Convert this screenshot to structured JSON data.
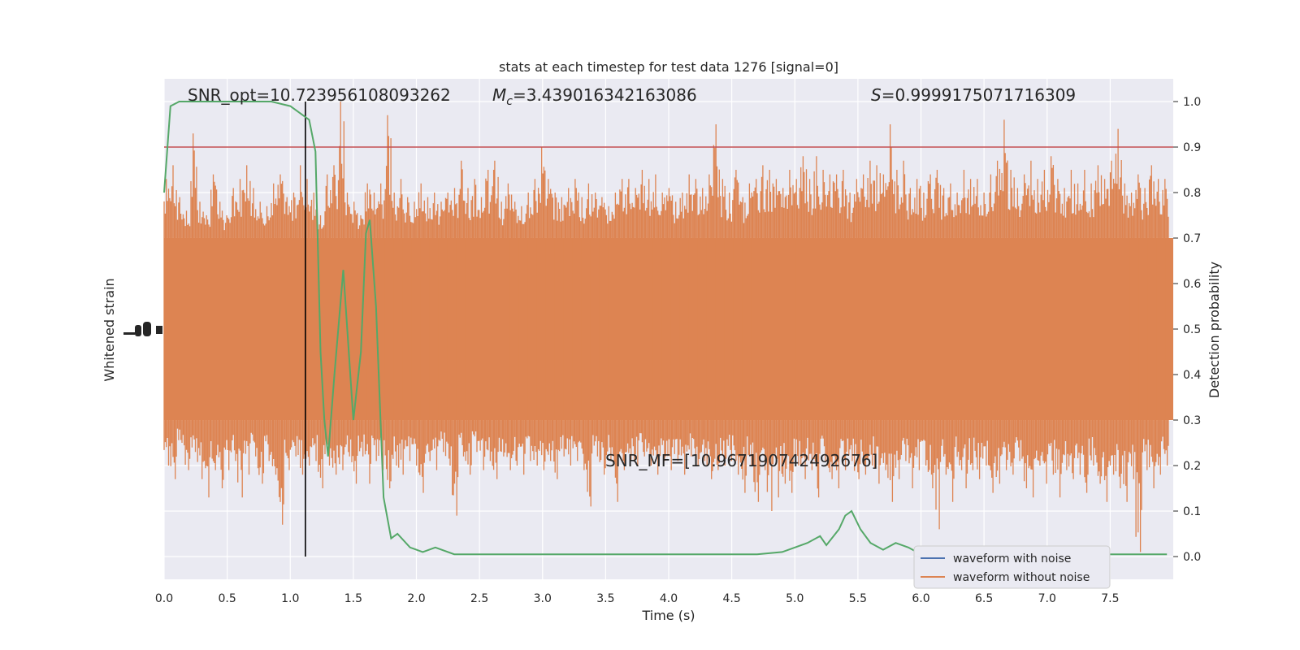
{
  "chart_data": {
    "type": "line",
    "title": "stats at each timestep for test data 1276 [signal=0]",
    "xlabel": "Time (s)",
    "ylabel_left": "Whitened strain",
    "ylabel_right": "Detection probability",
    "xlim": [
      0.0,
      8.0
    ],
    "ylim_right": [
      -0.05,
      1.05
    ],
    "x_ticks": [
      "0.0",
      "0.5",
      "1.0",
      "1.5",
      "2.0",
      "2.5",
      "3.0",
      "3.5",
      "4.0",
      "4.5",
      "5.0",
      "5.5",
      "6.0",
      "6.5",
      "7.0",
      "7.5"
    ],
    "y_ticks_right": [
      "0.0",
      "0.1",
      "0.2",
      "0.3",
      "0.4",
      "0.5",
      "0.6",
      "0.7",
      "0.8",
      "0.9",
      "1.0"
    ],
    "grid": true,
    "annotations": {
      "snr_opt": "SNR_opt=10.723956108093262",
      "mc_symbol": "M",
      "mc_subscript": "c",
      "mc_value": "=3.439016342163086",
      "s_symbol": "S",
      "s_value": "=0.9999175071716309",
      "snr_mf": "SNR_MF=[10.967190742492676]"
    },
    "threshold": 0.9,
    "marker_time": 1.12,
    "legend": {
      "position": "lower right",
      "entries": [
        "waveform with noise",
        "waveform without noise"
      ]
    },
    "series": [
      {
        "name": "waveform without noise",
        "color": "#dd8452",
        "band_low": 0.3,
        "band_high": 0.7,
        "upper_envelope": [
          0.83,
          0.86,
          0.79,
          0.76,
          0.93,
          0.78,
          0.75,
          0.84,
          0.78,
          0.75,
          0.81,
          0.83,
          0.86,
          0.81,
          0.78,
          0.77,
          0.82,
          0.84,
          0.79,
          0.8,
          0.86,
          0.83,
          0.8,
          0.75,
          0.84,
          0.86,
          1.0,
          0.8,
          0.78,
          0.75,
          0.82,
          0.8,
          0.82,
          0.97,
          0.8,
          0.83,
          0.79,
          0.78,
          0.82,
          0.79,
          0.8,
          0.78,
          0.8,
          0.81,
          0.87,
          0.81,
          0.83,
          0.79,
          0.85,
          0.87,
          0.78,
          0.82,
          0.78,
          0.77,
          0.8,
          0.83,
          0.9,
          0.83,
          0.8,
          0.79,
          0.81,
          0.83,
          0.79,
          0.82,
          0.8,
          0.79,
          0.77,
          0.8,
          0.83,
          0.83,
          0.81,
          0.85,
          0.83,
          0.84,
          0.8,
          0.81,
          0.78,
          0.8,
          0.84,
          0.83,
          0.81,
          0.84,
          0.95,
          0.83,
          0.8,
          0.85,
          0.79,
          0.82,
          0.83,
          0.86,
          0.85,
          0.83,
          0.81,
          0.85,
          0.83,
          0.88,
          0.83,
          0.88,
          0.85,
          0.84,
          0.84,
          0.85,
          0.8,
          0.83,
          0.84,
          0.87,
          0.86,
          0.84,
          0.95,
          0.85,
          0.87,
          0.81,
          0.83,
          0.8,
          0.84,
          0.85,
          0.81,
          0.82,
          0.8,
          0.85,
          0.83,
          0.83,
          0.8,
          0.84,
          0.87,
          0.96,
          0.85,
          0.81,
          0.84,
          0.87,
          0.83,
          0.85,
          0.88,
          0.83,
          0.81,
          0.85,
          0.82,
          0.85,
          0.82,
          0.86,
          0.83,
          0.87,
          0.94,
          0.82,
          0.8,
          0.84,
          0.81,
          0.86,
          0.83,
          0.83
        ],
        "lower_envelope": [
          0.2,
          0.17,
          0.25,
          0.19,
          0.23,
          0.17,
          0.13,
          0.19,
          0.15,
          0.19,
          0.21,
          0.13,
          0.18,
          0.22,
          0.16,
          0.21,
          0.18,
          0.07,
          0.19,
          0.22,
          0.18,
          0.2,
          0.21,
          0.15,
          0.2,
          0.18,
          0.19,
          0.22,
          0.16,
          0.22,
          0.16,
          0.21,
          0.19,
          0.15,
          0.2,
          0.18,
          0.21,
          0.2,
          0.14,
          0.21,
          0.19,
          0.23,
          0.2,
          0.09,
          0.22,
          0.18,
          0.23,
          0.19,
          0.21,
          0.17,
          0.22,
          0.19,
          0.2,
          0.18,
          0.21,
          0.2,
          0.19,
          0.21,
          0.17,
          0.22,
          0.2,
          0.21,
          0.19,
          0.11,
          0.22,
          0.18,
          0.21,
          0.12,
          0.19,
          0.21,
          0.2,
          0.22,
          0.2,
          0.18,
          0.21,
          0.19,
          0.21,
          0.18,
          0.22,
          0.2,
          0.21,
          0.17,
          0.19,
          0.2,
          0.21,
          0.18,
          0.14,
          0.2,
          0.12,
          0.19,
          0.1,
          0.13,
          0.16,
          0.14,
          0.2,
          0.17,
          0.19,
          0.13,
          0.21,
          0.17,
          0.15,
          0.19,
          0.21,
          0.17,
          0.18,
          0.2,
          0.16,
          0.19,
          0.12,
          0.17,
          0.21,
          0.15,
          0.19,
          0.2,
          0.15,
          0.06,
          0.18,
          0.12,
          0.2,
          0.15,
          0.19,
          0.17,
          0.2,
          0.14,
          0.16,
          0.19,
          0.18,
          0.21,
          0.15,
          0.13,
          0.2,
          0.16,
          0.18,
          0.13,
          0.19,
          0.17,
          0.18,
          0.14,
          0.2,
          0.16,
          0.12,
          0.18,
          0.15,
          0.12,
          0.17,
          0.01,
          0.19,
          0.15,
          0.18,
          0.2
        ]
      },
      {
        "name": "detection probability",
        "color": "#55a868",
        "x": [
          0.0,
          0.05,
          0.12,
          0.3,
          0.55,
          0.85,
          1.0,
          1.1,
          1.15,
          1.2,
          1.24,
          1.27,
          1.3,
          1.35,
          1.42,
          1.5,
          1.56,
          1.6,
          1.63,
          1.68,
          1.74,
          1.8,
          1.85,
          1.95,
          2.05,
          2.15,
          2.3,
          2.45,
          2.6,
          2.8,
          3.0,
          3.2,
          3.4,
          3.55,
          3.7,
          3.9,
          4.1,
          4.3,
          4.5,
          4.7,
          4.9,
          5.0,
          5.1,
          5.2,
          5.25,
          5.35,
          5.4,
          5.45,
          5.52,
          5.6,
          5.7,
          5.8,
          5.9,
          6.0,
          6.2,
          6.4,
          6.6,
          6.8,
          7.0,
          7.2,
          7.4,
          7.6,
          7.8,
          7.95
        ],
        "y": [
          0.8,
          0.99,
          1.0,
          1.0,
          1.0,
          1.0,
          0.99,
          0.97,
          0.96,
          0.89,
          0.45,
          0.3,
          0.22,
          0.4,
          0.63,
          0.3,
          0.45,
          0.71,
          0.74,
          0.55,
          0.13,
          0.04,
          0.05,
          0.02,
          0.01,
          0.02,
          0.005,
          0.005,
          0.005,
          0.005,
          0.005,
          0.005,
          0.005,
          0.005,
          0.005,
          0.005,
          0.005,
          0.005,
          0.005,
          0.005,
          0.01,
          0.02,
          0.03,
          0.045,
          0.025,
          0.06,
          0.09,
          0.1,
          0.06,
          0.03,
          0.015,
          0.03,
          0.02,
          0.005,
          0.005,
          0.005,
          0.005,
          0.005,
          0.005,
          0.005,
          0.005,
          0.005,
          0.005,
          0.005
        ]
      },
      {
        "name": "waveform with noise",
        "color": "#4c72b0"
      }
    ]
  }
}
